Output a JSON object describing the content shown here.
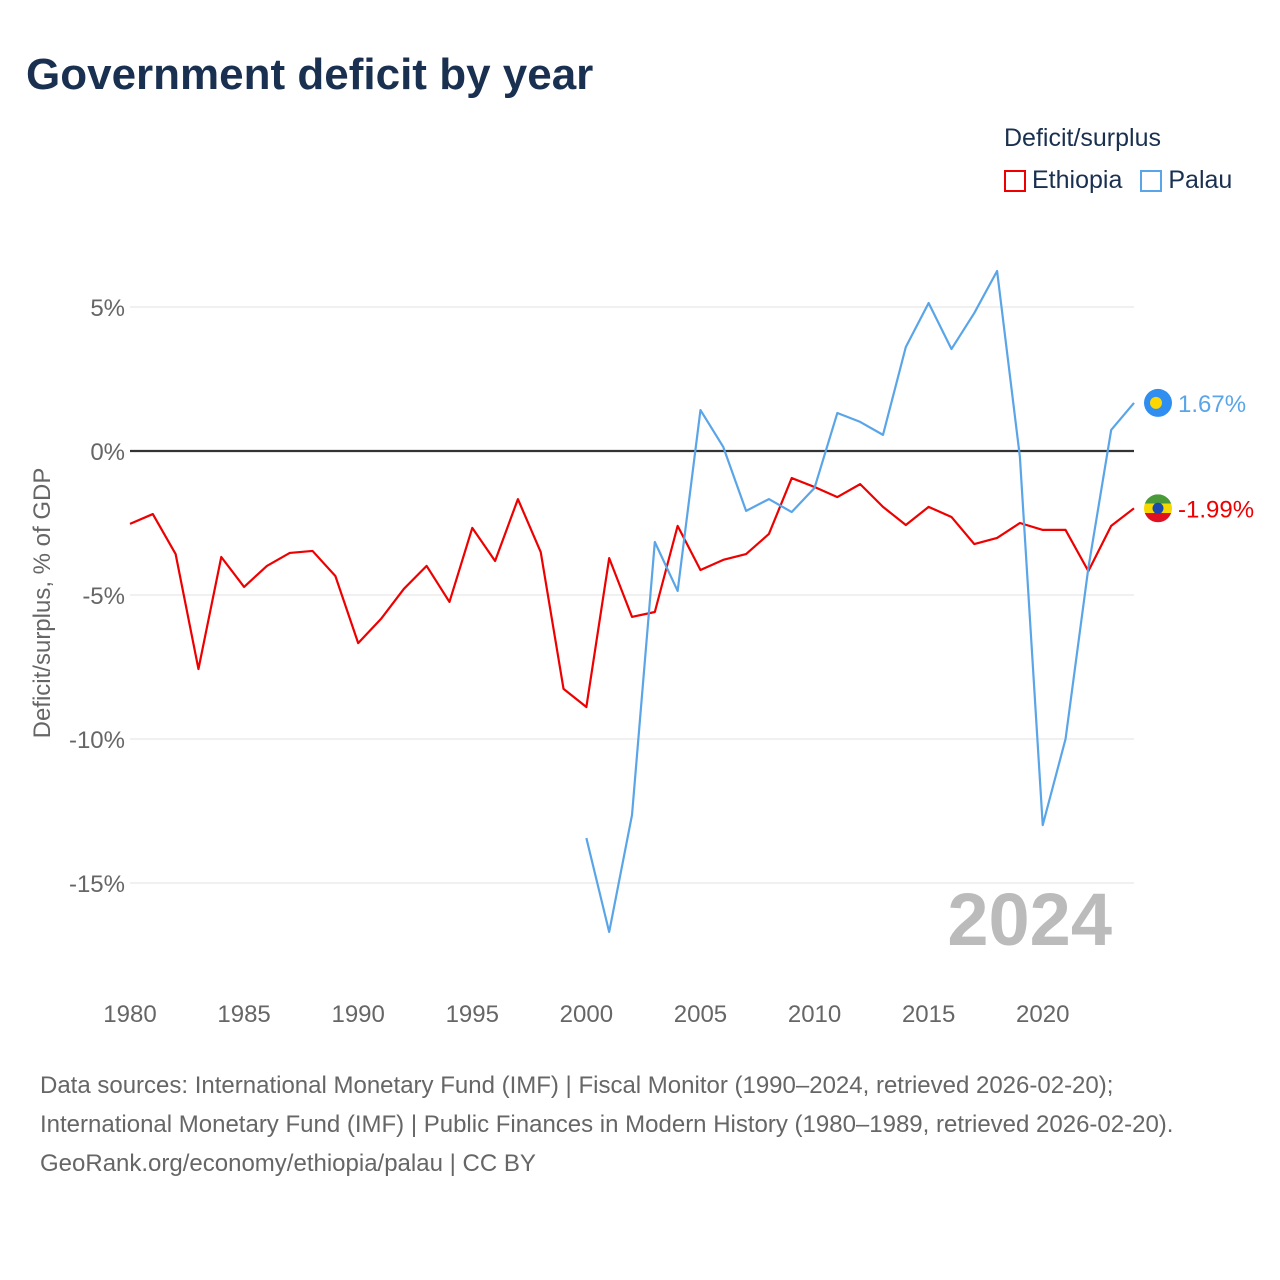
{
  "title": "Government deficit by year",
  "legend": {
    "title": "Deficit/surplus",
    "items": [
      {
        "name": "Ethiopia",
        "color": "#ee0000"
      },
      {
        "name": "Palau",
        "color": "#5aa5e8"
      }
    ]
  },
  "chart_data": {
    "type": "line",
    "title": "Government deficit by year",
    "xlabel": "",
    "ylabel": "Deficit/surplus, % of GDP",
    "xlim": [
      1980,
      2024
    ],
    "x_ticks": [
      "1980",
      "1985",
      "1990",
      "1995",
      "2000",
      "2005",
      "2010",
      "2015",
      "2020"
    ],
    "y_ticks": [
      {
        "v": 5,
        "label": "5%"
      },
      {
        "v": 0,
        "label": "0%"
      },
      {
        "v": -5,
        "label": "-5%"
      },
      {
        "v": -10,
        "label": "-10%"
      },
      {
        "v": -15,
        "label": "-15%"
      }
    ],
    "watermark_year": "2024",
    "series": [
      {
        "name": "Ethiopia",
        "color": "#ee0000",
        "end_label": "-1.99%",
        "x": [
          1980,
          1981,
          1982,
          1983,
          1984,
          1985,
          1986,
          1987,
          1988,
          1989,
          1990,
          1991,
          1992,
          1993,
          1994,
          1995,
          1996,
          1997,
          1998,
          1999,
          2000,
          2001,
          2002,
          2003,
          2004,
          2005,
          2006,
          2007,
          2008,
          2009,
          2010,
          2011,
          2012,
          2013,
          2014,
          2015,
          2016,
          2017,
          2018,
          2019,
          2020,
          2021,
          2022,
          2023,
          2024
        ],
        "values": [
          -2.53,
          -2.19,
          -3.58,
          -7.57,
          -3.68,
          -4.72,
          -3.99,
          -3.54,
          -3.47,
          -4.34,
          -6.67,
          -5.83,
          -4.79,
          -3.99,
          -5.24,
          -2.67,
          -3.82,
          -1.67,
          -3.51,
          -8.26,
          -8.89,
          -3.72,
          -5.76,
          -5.59,
          -2.6,
          -4.13,
          -3.78,
          -3.58,
          -2.88,
          -0.94,
          -1.25,
          -1.6,
          -1.15,
          -1.94,
          -2.57,
          -1.94,
          -2.29,
          -3.23,
          -3.02,
          -2.5,
          -2.74,
          -2.74,
          -4.17,
          -2.6,
          -1.99
        ]
      },
      {
        "name": "Palau",
        "color": "#5aa5e8",
        "end_label": "1.67%",
        "x": [
          2000,
          2001,
          2002,
          2003,
          2004,
          2005,
          2006,
          2007,
          2008,
          2009,
          2010,
          2011,
          2012,
          2013,
          2014,
          2015,
          2016,
          2017,
          2018,
          2019,
          2020,
          2021,
          2022,
          2023,
          2024
        ],
        "values": [
          -13.44,
          -16.7,
          -12.64,
          -3.16,
          -4.86,
          1.42,
          0.14,
          -2.08,
          -1.67,
          -2.12,
          -1.28,
          1.32,
          1.01,
          0.56,
          3.61,
          5.14,
          3.54,
          4.79,
          6.25,
          -0.21,
          -12.99,
          -10.0,
          -4.06,
          0.73,
          1.67
        ]
      }
    ]
  },
  "footer": {
    "sources": "Data sources: International Monetary Fund (IMF) | Fiscal Monitor (1990–2024, retrieved 2026-02-20); International Monetary Fund (IMF) | Public Finances in Modern History (1980–1989, retrieved 2026-02-20).",
    "credit": "GeoRank.org/economy/ethiopia/palau | CC BY"
  }
}
